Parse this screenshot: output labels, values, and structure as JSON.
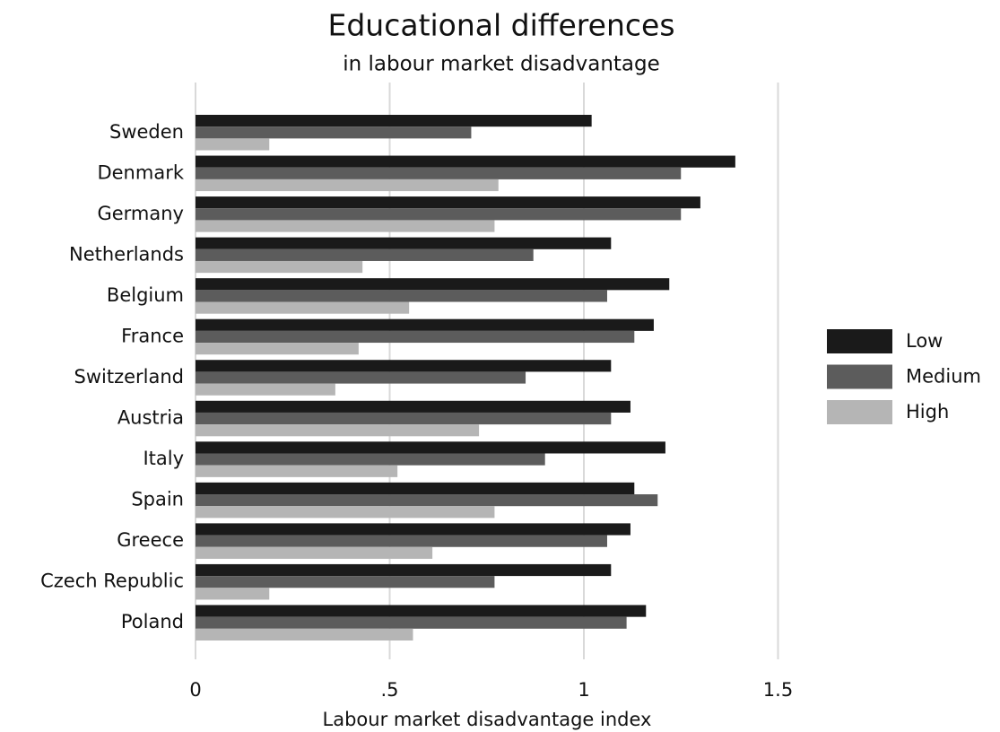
{
  "chart_data": {
    "type": "hbar",
    "title": "Educational differences",
    "subtitle": "in labour market disadvantage",
    "xlabel": "Labour market disadvantage index",
    "categories": [
      "Sweden",
      "Denmark",
      "Germany",
      "Netherlands",
      "Belgium",
      "France",
      "Switzerland",
      "Austria",
      "Italy",
      "Spain",
      "Greece",
      "Czech Republic",
      "Poland"
    ],
    "series": [
      {
        "name": "Low",
        "color": "#1a1a1a",
        "values": [
          1.02,
          1.39,
          1.3,
          1.07,
          1.22,
          1.18,
          1.07,
          1.12,
          1.21,
          1.13,
          1.12,
          1.07,
          1.16
        ]
      },
      {
        "name": "Medium",
        "color": "#5c5c5c",
        "values": [
          0.71,
          1.25,
          1.25,
          0.87,
          1.06,
          1.13,
          0.85,
          1.07,
          0.9,
          1.19,
          1.06,
          0.77,
          1.11
        ]
      },
      {
        "name": "High",
        "color": "#b5b5b5",
        "values": [
          0.19,
          0.78,
          0.77,
          0.43,
          0.55,
          0.42,
          0.36,
          0.73,
          0.52,
          0.77,
          0.61,
          0.19,
          0.56
        ]
      }
    ],
    "xlim": [
      0,
      1.6
    ],
    "xticks": [
      0,
      {
        "value": 0.5,
        "label": ".5"
      },
      1,
      1.5
    ],
    "grid": true,
    "legend": "right"
  }
}
